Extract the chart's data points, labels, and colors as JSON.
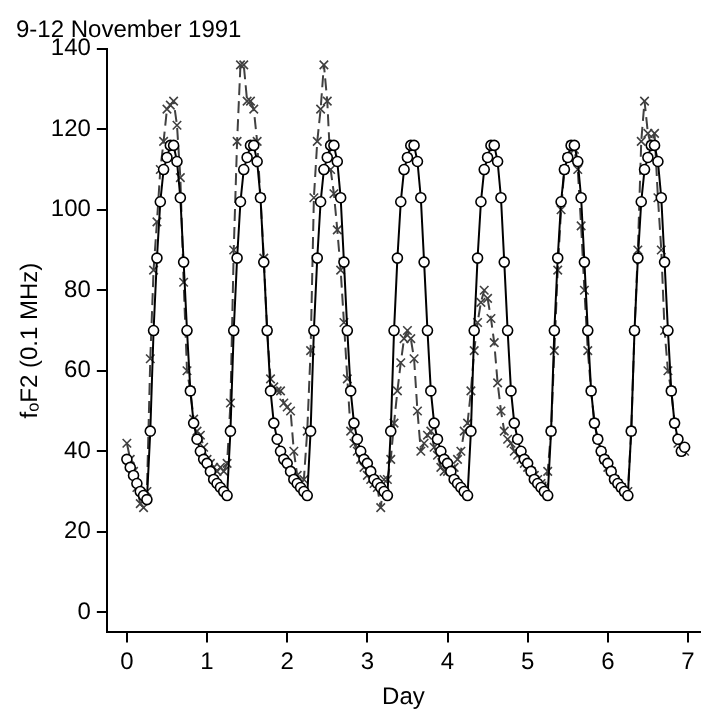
{
  "chart_data": {
    "type": "line",
    "title": "9-12 November 1991",
    "xlabel": "Day",
    "ylabel": "fₒF2 (0.1 MHz)",
    "x": [
      0,
      0.042,
      0.083,
      0.125,
      0.167,
      0.208,
      0.25,
      0.292,
      0.333,
      0.375,
      0.417,
      0.458,
      0.5,
      0.542,
      0.583,
      0.625,
      0.667,
      0.708,
      0.75,
      0.792,
      0.833,
      0.875,
      0.917,
      0.958,
      1,
      1.042,
      1.083,
      1.125,
      1.167,
      1.208,
      1.25,
      1.292,
      1.333,
      1.375,
      1.417,
      1.458,
      1.5,
      1.542,
      1.583,
      1.625,
      1.667,
      1.708,
      1.75,
      1.792,
      1.833,
      1.875,
      1.917,
      1.958,
      2,
      2.042,
      2.083,
      2.125,
      2.167,
      2.208,
      2.25,
      2.292,
      2.333,
      2.375,
      2.417,
      2.458,
      2.5,
      2.542,
      2.583,
      2.625,
      2.667,
      2.708,
      2.75,
      2.792,
      2.833,
      2.875,
      2.917,
      2.958,
      3,
      3.042,
      3.083,
      3.125,
      3.167,
      3.208,
      3.25,
      3.292,
      3.333,
      3.375,
      3.417,
      3.458,
      3.5,
      3.542,
      3.583,
      3.625,
      3.667,
      3.708,
      3.75,
      3.792,
      3.833,
      3.875,
      3.917,
      3.958,
      4,
      4.042,
      4.083,
      4.125,
      4.167,
      4.208,
      4.25,
      4.292,
      4.333,
      4.375,
      4.417,
      4.458,
      4.5,
      4.542,
      4.583,
      4.625,
      4.667,
      4.708,
      4.75,
      4.792,
      4.833,
      4.875,
      4.917,
      4.958,
      5,
      5.042,
      5.083,
      5.125,
      5.167,
      5.208,
      5.25,
      5.292,
      5.333,
      5.375,
      5.417,
      5.458,
      5.5,
      5.542,
      5.583,
      5.625,
      5.667,
      5.708,
      5.75,
      5.792,
      5.833,
      5.875,
      5.917,
      5.958,
      6,
      6.042,
      6.083,
      6.125,
      6.167,
      6.208,
      6.25,
      6.292,
      6.333,
      6.375,
      6.417,
      6.458,
      6.5,
      6.542,
      6.583,
      6.625,
      6.667,
      6.708,
      6.75,
      6.792,
      6.833,
      6.875,
      6.917,
      6.958
    ],
    "series": [
      {
        "color": "#000000",
        "marker": "circle",
        "line_style": "solid",
        "values": [
          38,
          36,
          34,
          32,
          30,
          29,
          28,
          45,
          70,
          88,
          102,
          110,
          113,
          116,
          116,
          112,
          103,
          87,
          70,
          55,
          47,
          43,
          40,
          38,
          37,
          35,
          33,
          32,
          31,
          30,
          29,
          45,
          70,
          88,
          102,
          110,
          113,
          116,
          116,
          112,
          103,
          87,
          70,
          55,
          47,
          43,
          40,
          38,
          37,
          35,
          33,
          32,
          31,
          30,
          29,
          45,
          70,
          88,
          102,
          110,
          113,
          116,
          116,
          112,
          103,
          87,
          70,
          55,
          47,
          43,
          40,
          38,
          37,
          35,
          33,
          32,
          31,
          30,
          29,
          45,
          70,
          88,
          102,
          110,
          113,
          116,
          116,
          112,
          103,
          87,
          70,
          55,
          47,
          43,
          40,
          38,
          37,
          35,
          33,
          32,
          31,
          30,
          29,
          45,
          70,
          88,
          102,
          110,
          113,
          116,
          116,
          112,
          103,
          87,
          70,
          55,
          47,
          43,
          40,
          38,
          37,
          35,
          33,
          32,
          31,
          30,
          29,
          45,
          70,
          88,
          102,
          110,
          113,
          116,
          116,
          112,
          103,
          87,
          70,
          55,
          47,
          43,
          40,
          38,
          37,
          35,
          33,
          32,
          31,
          30,
          29,
          45,
          70,
          88,
          102,
          110,
          113,
          116,
          116,
          112,
          103,
          87,
          70,
          55,
          47,
          43,
          40,
          41
        ]
      },
      {
        "color": "#404040",
        "marker": "cross",
        "line_style": "dashed",
        "values": [
          42,
          38,
          35,
          31,
          27,
          26,
          30,
          63,
          85,
          97,
          110,
          117,
          125,
          126,
          127,
          121,
          108,
          82,
          60,
          55,
          48,
          45,
          44,
          41,
          38,
          37,
          36,
          35,
          36,
          35,
          37,
          52,
          90,
          117,
          136,
          136,
          127,
          127,
          125,
          117,
          103,
          88,
          70,
          58,
          56,
          55,
          55,
          52,
          51,
          50,
          40,
          34,
          32,
          33,
          45,
          65,
          103,
          117,
          125,
          136,
          127,
          110,
          104,
          95,
          85,
          72,
          58,
          45,
          42,
          40,
          38,
          36,
          34,
          33,
          32,
          31,
          26,
          33,
          33,
          38,
          47,
          55,
          62,
          68,
          70,
          68,
          63,
          50,
          40,
          42,
          44,
          45,
          41,
          39,
          36,
          35,
          35,
          35,
          36,
          38,
          40,
          45,
          47,
          55,
          65,
          72,
          77,
          80,
          78,
          73,
          67,
          57,
          50,
          45,
          43,
          42,
          40,
          39,
          38,
          37,
          36,
          35,
          34,
          33,
          32,
          31,
          35,
          45,
          65,
          85,
          100,
          110,
          113,
          116,
          115,
          110,
          96,
          80,
          65,
          55,
          47,
          43,
          40,
          38,
          36,
          35,
          33,
          32,
          31,
          30,
          30,
          45,
          70,
          90,
          117,
          127,
          119,
          116,
          119,
          103,
          90,
          70,
          60,
          55,
          47,
          42,
          40,
          40
        ]
      }
    ],
    "xlim": [
      -0.25,
      7.15
    ],
    "xticks": [
      0,
      1,
      2,
      3,
      4,
      5,
      6,
      7
    ],
    "ylim": [
      -5,
      140
    ],
    "yticks": [
      0,
      20,
      40,
      60,
      80,
      100,
      120,
      140
    ],
    "grid": false,
    "legend": false
  }
}
